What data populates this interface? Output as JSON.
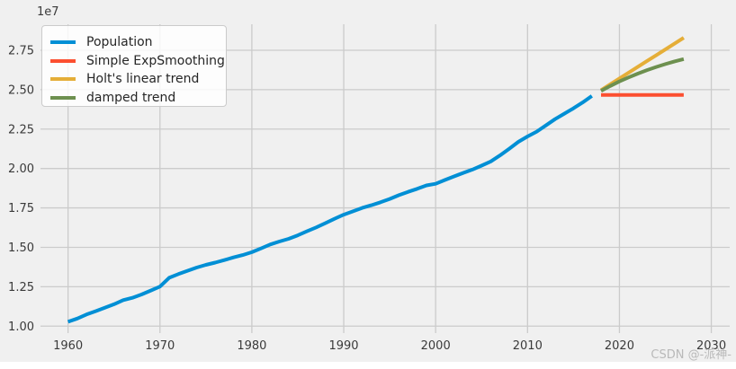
{
  "figure": {
    "background": "#f0f0f0",
    "page_background": "#ffffff",
    "grid_color": "#cbcbcb",
    "text_color": "#3a3a3a",
    "watermark": "CSDN @-派神-",
    "watermark_color": "#b9b9b9"
  },
  "legend": {
    "position": "upper-left",
    "background": "#fafafa",
    "border_color": "#cbcbcb",
    "items": [
      {
        "label": "Population",
        "color": "#008fd5"
      },
      {
        "label": "Simple ExpSmoothing",
        "color": "#fc4f30"
      },
      {
        "label": "Holt's linear trend",
        "color": "#e5ae38"
      },
      {
        "label": "damped trend",
        "color": "#6d904f"
      }
    ]
  },
  "chart_data": {
    "type": "line",
    "title": "",
    "xlabel": "",
    "ylabel": "",
    "y_offset": "1e7",
    "grid": true,
    "legend_position": "upper left",
    "xlim": [
      1957,
      2032
    ],
    "ylim": [
      0.956,
      2.915
    ],
    "x_ticks": [
      1960,
      1970,
      1980,
      1990,
      2000,
      2010,
      2020,
      2030
    ],
    "y_ticks": [
      {
        "label": "1.00",
        "value": 1.0
      },
      {
        "label": "1.25",
        "value": 1.25
      },
      {
        "label": "1.50",
        "value": 1.5
      },
      {
        "label": "1.75",
        "value": 1.75
      },
      {
        "label": "2.00",
        "value": 2.0
      },
      {
        "label": "2.25",
        "value": 2.25
      },
      {
        "label": "2.50",
        "value": 2.5
      },
      {
        "label": "2.75",
        "value": 2.75
      }
    ],
    "unit_note": "values are in units of 1e7 (y-axis offset label)",
    "series": [
      {
        "name": "Population",
        "color": "#008fd5",
        "line_width": 4,
        "x": [
          1960,
          1961,
          1962,
          1963,
          1964,
          1965,
          1966,
          1967,
          1968,
          1969,
          1970,
          1971,
          1972,
          1973,
          1974,
          1975,
          1976,
          1977,
          1978,
          1979,
          1980,
          1981,
          1982,
          1983,
          1984,
          1985,
          1986,
          1987,
          1988,
          1989,
          1990,
          1991,
          1992,
          1993,
          1994,
          1995,
          1996,
          1997,
          1998,
          1999,
          2000,
          2001,
          2002,
          2003,
          2004,
          2005,
          2006,
          2007,
          2008,
          2009,
          2010,
          2011,
          2012,
          2013,
          2014,
          2015,
          2016,
          2017
        ],
        "values": [
          1.028,
          1.048,
          1.074,
          1.095,
          1.117,
          1.139,
          1.165,
          1.18,
          1.201,
          1.226,
          1.251,
          1.307,
          1.33,
          1.351,
          1.372,
          1.389,
          1.403,
          1.419,
          1.436,
          1.451,
          1.469,
          1.493,
          1.518,
          1.537,
          1.554,
          1.576,
          1.602,
          1.626,
          1.653,
          1.681,
          1.707,
          1.728,
          1.75,
          1.767,
          1.786,
          1.807,
          1.831,
          1.852,
          1.871,
          1.893,
          1.903,
          1.927,
          1.95,
          1.972,
          1.993,
          2.018,
          2.045,
          2.083,
          2.125,
          2.169,
          2.203,
          2.234,
          2.273,
          2.313,
          2.348,
          2.382,
          2.419,
          2.46
        ]
      },
      {
        "name": "Simple ExpSmoothing",
        "color": "#fc4f30",
        "line_width": 4,
        "x": [
          2018,
          2019,
          2020,
          2021,
          2022,
          2023,
          2024,
          2025,
          2026,
          2027
        ],
        "values": [
          2.467,
          2.467,
          2.467,
          2.467,
          2.467,
          2.467,
          2.467,
          2.467,
          2.467,
          2.467
        ]
      },
      {
        "name": "Holt's linear trend",
        "color": "#e5ae38",
        "line_width": 4,
        "x": [
          2018,
          2019,
          2020,
          2021,
          2022,
          2023,
          2024,
          2025,
          2026,
          2027
        ],
        "values": [
          2.497,
          2.534,
          2.571,
          2.608,
          2.645,
          2.682,
          2.718,
          2.755,
          2.792,
          2.829
        ]
      },
      {
        "name": "damped trend",
        "color": "#6d904f",
        "line_width": 4,
        "x": [
          2018,
          2019,
          2020,
          2021,
          2022,
          2023,
          2024,
          2025,
          2026,
          2027
        ],
        "values": [
          2.492,
          2.523,
          2.552,
          2.578,
          2.602,
          2.624,
          2.644,
          2.662,
          2.679,
          2.694
        ]
      }
    ]
  }
}
